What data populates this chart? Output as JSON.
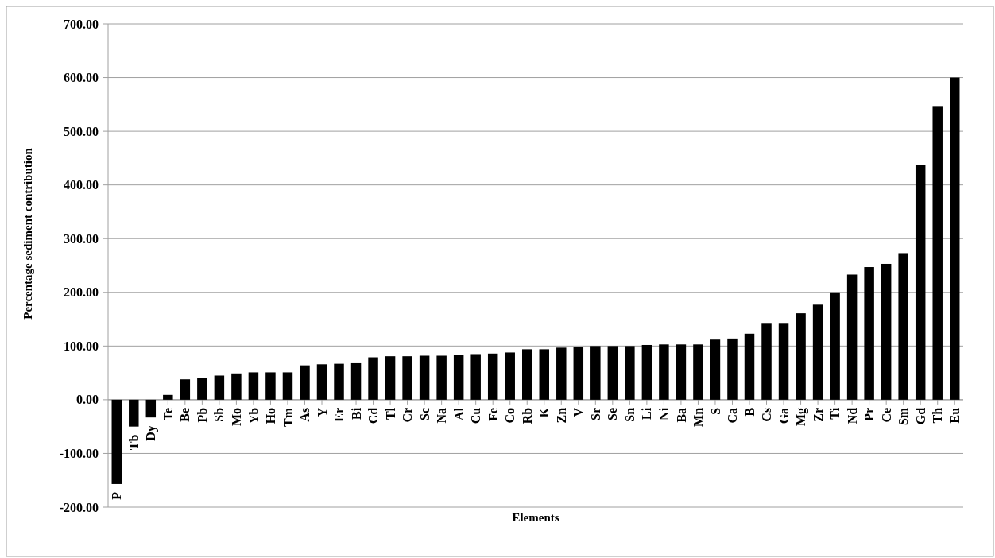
{
  "chart_data": {
    "type": "bar",
    "xlabel": "Elements",
    "ylabel": "Percentage sediment contribution",
    "categories": [
      "P",
      "Tb",
      "Dy",
      "Te",
      "Be",
      "Pb",
      "Sb",
      "Mo",
      "Yb",
      "Ho",
      "Tm",
      "As",
      "Y",
      "Er",
      "Bi",
      "Cd",
      "Tl",
      "Cr",
      "Sc",
      "Na",
      "Al",
      "Cu",
      "Fe",
      "Co",
      "Rb",
      "K",
      "Zn",
      "V",
      "Sr",
      "Se",
      "Sn",
      "Li",
      "Ni",
      "Ba",
      "Mn",
      "S",
      "Ca",
      "B",
      "Cs",
      "Ga",
      "Mg",
      "Zr",
      "Ti",
      "Nd",
      "Pr",
      "Ce",
      "Sm",
      "Gd",
      "Th",
      "Eu"
    ],
    "values": [
      -157,
      -50,
      -33,
      9,
      38,
      40,
      45,
      49,
      51,
      51,
      51,
      64,
      66,
      67,
      68,
      79,
      81,
      81,
      82,
      82,
      84,
      85,
      86,
      88,
      94,
      94,
      97,
      98,
      100,
      100,
      100,
      102,
      103,
      103,
      103,
      112,
      114,
      123,
      143,
      143,
      161,
      177,
      200,
      233,
      247,
      253,
      273,
      437,
      547,
      600
    ],
    "color": "#000000",
    "ylim": [
      -200,
      700
    ],
    "yticks": [
      {
        "value": -200,
        "label": "-200.00"
      },
      {
        "value": -100,
        "label": "-100.00"
      },
      {
        "value": 0,
        "label": "0.00"
      },
      {
        "value": 100,
        "label": "100.00"
      },
      {
        "value": 200,
        "label": "200.00"
      },
      {
        "value": 300,
        "label": "300.00"
      },
      {
        "value": 400,
        "label": "400.00"
      },
      {
        "value": 500,
        "label": "500.00"
      },
      {
        "value": 600,
        "label": "600.00"
      },
      {
        "value": 700,
        "label": "700.00"
      }
    ],
    "grid": "y"
  }
}
